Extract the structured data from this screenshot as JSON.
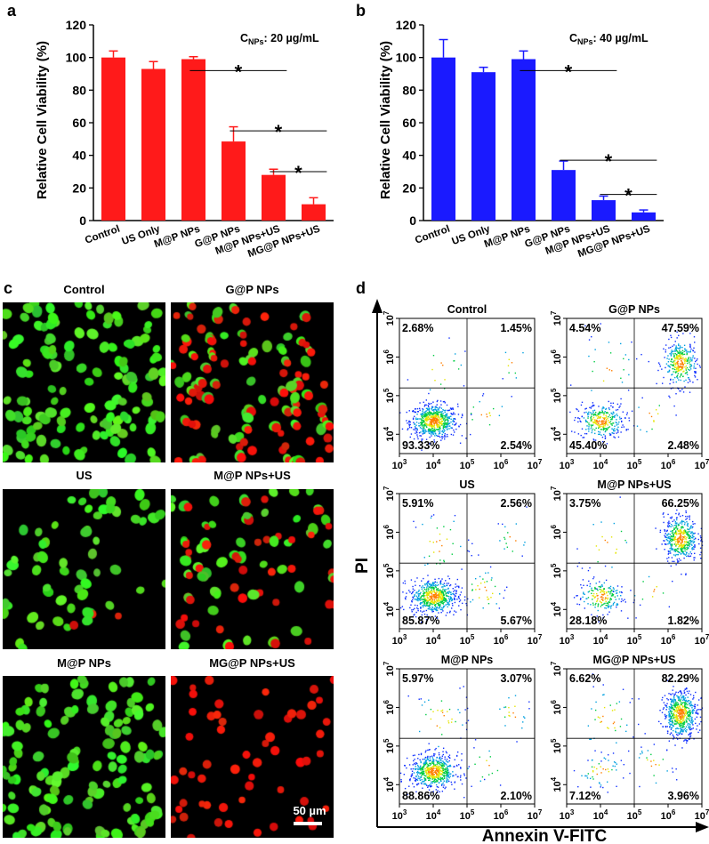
{
  "panels": {
    "a": "a",
    "b": "b",
    "c": "c",
    "d": "d"
  },
  "chart_data": [
    {
      "type": "bar",
      "id": "a",
      "title": "",
      "annotation_prefix": "C",
      "annotation_sub": "NPs",
      "annotation_suffix": ": 20 µg/mL",
      "ylabel": "Relative Cell Viability (%)",
      "xlabel": "",
      "ylim": [
        0,
        120
      ],
      "yticks": [
        "0",
        "20",
        "40",
        "60",
        "80",
        "100",
        "120"
      ],
      "categories": [
        "Control",
        "US Only",
        "M@P NPs",
        "G@P NPs",
        "M@P NPs+US",
        "MG@P NPs+US"
      ],
      "values": [
        100,
        93,
        99,
        48.5,
        28,
        10
      ],
      "errors": [
        4,
        4.5,
        1.5,
        9,
        3.5,
        4
      ],
      "color": "#ff1a1a",
      "significance": [
        {
          "from": 2,
          "to": 4,
          "level": 92,
          "label": "*"
        },
        {
          "from": 3,
          "to": 5,
          "level": 55,
          "label": "*"
        },
        {
          "from": 4,
          "to": 5,
          "level": 30,
          "label": "*"
        }
      ]
    },
    {
      "type": "bar",
      "id": "b",
      "title": "",
      "annotation_prefix": "C",
      "annotation_sub": "NPs",
      "annotation_suffix": ": 40 µg/mL",
      "ylabel": "Relative Cell Viability (%)",
      "xlabel": "",
      "ylim": [
        0,
        120
      ],
      "yticks": [
        "0",
        "20",
        "40",
        "60",
        "80",
        "100",
        "120"
      ],
      "categories": [
        "Control",
        "US Only",
        "M@P NPs",
        "G@P NPs",
        "M@P NPs+US",
        "MG@P NPs+US"
      ],
      "values": [
        100,
        91,
        99,
        31,
        12.5,
        5
      ],
      "errors": [
        11,
        3,
        5,
        5.5,
        2.5,
        1.5
      ],
      "color": "#1a1aff",
      "significance": [
        {
          "from": 2,
          "to": 4,
          "level": 92,
          "label": "*"
        },
        {
          "from": 3,
          "to": 5,
          "level": 37,
          "label": "*"
        },
        {
          "from": 4,
          "to": 5,
          "level": 16,
          "label": "*"
        }
      ]
    },
    {
      "type": "scatter",
      "id": "d",
      "xlabel": "Annexin V-FITC",
      "ylabel": "PI",
      "xlim_log10": [
        3,
        7
      ],
      "ylim_log10": [
        3.5,
        7
      ],
      "xticks": [
        "3",
        "4",
        "5",
        "6",
        "7"
      ],
      "yticks": [
        "4",
        "5",
        "6",
        "7"
      ],
      "tick_base": "10",
      "gate_x_log10": 5,
      "gate_y_log10": 5.2,
      "plots": [
        {
          "title": "Control",
          "ul": "2.68%",
          "ur": "1.45%",
          "ll": "93.33%",
          "lr": "2.54%"
        },
        {
          "title": "G@P NPs",
          "ul": "4.54%",
          "ur": "47.59%",
          "ll": "45.40%",
          "lr": "2.48%"
        },
        {
          "title": "US",
          "ul": "5.91%",
          "ur": "2.56%",
          "ll": "85.87%",
          "lr": "5.67%"
        },
        {
          "title": "M@P NPs+US",
          "ul": "3.75%",
          "ur": "66.25%",
          "ll": "28.18%",
          "lr": "1.82%"
        },
        {
          "title": "M@P NPs",
          "ul": "5.97%",
          "ur": "3.07%",
          "ll": "88.86%",
          "lr": "2.10%"
        },
        {
          "title": "MG@P NPs+US",
          "ul": "6.62%",
          "ur": "82.29%",
          "ll": "7.12%",
          "lr": "3.96%"
        }
      ]
    }
  ],
  "micrographs": {
    "images": [
      {
        "title": "Control",
        "green": 1.0,
        "red": 0.0
      },
      {
        "title": "G@P NPs",
        "green": 0.55,
        "red": 0.55
      },
      {
        "title": "US",
        "green": 0.45,
        "red": 0.03
      },
      {
        "title": "M@P NPs+US",
        "green": 0.45,
        "red": 0.4
      },
      {
        "title": "M@P NPs",
        "green": 1.0,
        "red": 0.0
      },
      {
        "title": "MG@P NPs+US",
        "green": 0.0,
        "red": 0.45
      }
    ],
    "scale_bar": "50 µm"
  }
}
